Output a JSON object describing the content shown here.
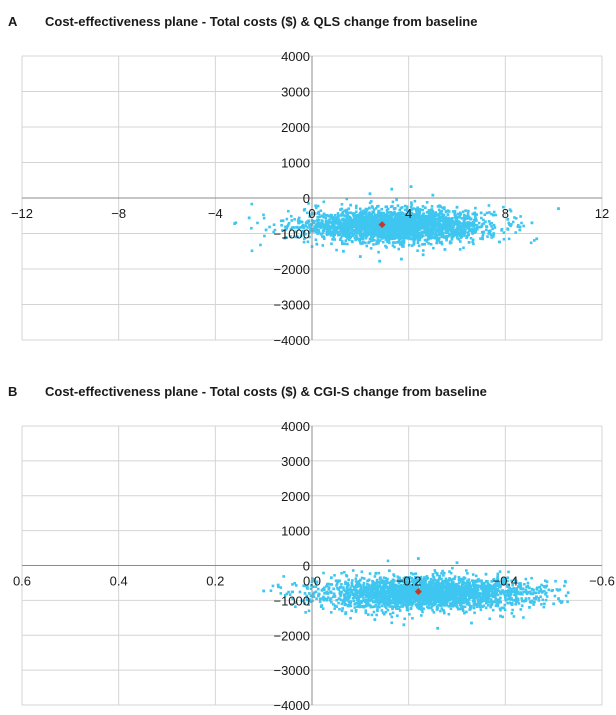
{
  "colors": {
    "points": "#3ec6f0",
    "mean": "#c0392b",
    "grid": "#d4d4d4",
    "axis": "#8c8c8c"
  },
  "panels": [
    {
      "letter": "A",
      "title": "Cost-effectiveness plane - Total costs ($) & QLS change from baseline"
    },
    {
      "letter": "B",
      "title": "Cost-effectiveness plane - Total costs ($) & CGI-S change from baseline"
    }
  ],
  "chart_data": [
    {
      "type": "scatter",
      "title": "Cost-effectiveness plane - Total costs ($) & QLS change from baseline",
      "xlabel": "",
      "ylabel": "",
      "xlim": [
        -12,
        12
      ],
      "ylim": [
        -4000,
        4000
      ],
      "reversed_x": false,
      "x_ticks": [
        -12,
        -8,
        -4,
        0,
        4,
        8,
        12
      ],
      "x_tick_labels": [
        "−12",
        "−8",
        "−4",
        "0",
        "4",
        "8",
        "12"
      ],
      "y_ticks": [
        4000,
        3000,
        2000,
        1000,
        0,
        -1000,
        -2000,
        -3000,
        -4000
      ],
      "y_tick_labels": [
        "4000",
        "3000",
        "2000",
        "1000",
        "0",
        "−1000",
        "−2000",
        "−3000",
        "−4000"
      ],
      "grid": true,
      "mean_point": {
        "x": 2.9,
        "y": -750
      },
      "cloud": {
        "center_x": 3.5,
        "center_y": -780,
        "spread_x": 1.9,
        "spread_y": 230,
        "x_range": [
          -3.4,
          9.4
        ],
        "y_range": [
          -1850,
          320
        ]
      },
      "points": [
        {
          "x": -3.2,
          "y": -720
        },
        {
          "x": -2.6,
          "y": -560
        },
        {
          "x": -1.9,
          "y": -900
        },
        {
          "x": -1.2,
          "y": -640
        },
        {
          "x": -0.6,
          "y": -1100
        },
        {
          "x": -0.3,
          "y": -320
        },
        {
          "x": 0.2,
          "y": -1300
        },
        {
          "x": 0.5,
          "y": -450
        },
        {
          "x": 0.9,
          "y": -980
        },
        {
          "x": 1.3,
          "y": -1500
        },
        {
          "x": 1.6,
          "y": -200
        },
        {
          "x": 2.0,
          "y": -1650
        },
        {
          "x": 2.4,
          "y": 120
        },
        {
          "x": 2.8,
          "y": -1780
        },
        {
          "x": 3.3,
          "y": 250
        },
        {
          "x": 3.7,
          "y": -1720
        },
        {
          "x": 4.1,
          "y": 320
        },
        {
          "x": 4.6,
          "y": -1600
        },
        {
          "x": 5.0,
          "y": 80
        },
        {
          "x": 5.5,
          "y": -1450
        },
        {
          "x": 6.0,
          "y": -260
        },
        {
          "x": 6.5,
          "y": -1250
        },
        {
          "x": 7.0,
          "y": -420
        },
        {
          "x": 7.5,
          "y": -1080
        },
        {
          "x": 8.1,
          "y": -600
        },
        {
          "x": 8.6,
          "y": -900
        },
        {
          "x": 9.1,
          "y": -700
        },
        {
          "x": 9.3,
          "y": -1150
        },
        {
          "x": 10.2,
          "y": -300
        }
      ]
    },
    {
      "type": "scatter",
      "title": "Cost-effectiveness plane - Total costs ($) & CGI-S change from baseline",
      "xlabel": "",
      "ylabel": "",
      "xlim": [
        0.6,
        -0.6
      ],
      "ylim": [
        -4000,
        4000
      ],
      "reversed_x": true,
      "x_ticks": [
        0.6,
        0.4,
        0.2,
        0.0,
        -0.2,
        -0.4,
        -0.6
      ],
      "x_tick_labels": [
        "0.6",
        "0.4",
        "0.2",
        "0.0",
        "−0.2",
        "−0.4",
        "−0.6"
      ],
      "y_ticks": [
        4000,
        3000,
        2000,
        1000,
        0,
        -1000,
        -2000,
        -3000,
        -4000
      ],
      "y_tick_labels": [
        "4000",
        "3000",
        "2000",
        "1000",
        "0",
        "−1000",
        "−2000",
        "−3000",
        "−4000"
      ],
      "grid": true,
      "mean_point": {
        "x": -0.22,
        "y": -750
      },
      "cloud": {
        "center_x": -0.24,
        "center_y": -800,
        "spread_x": 0.11,
        "spread_y": 230,
        "x_range": [
          0.1,
          -0.53
        ],
        "y_range": [
          -1900,
          250
        ]
      },
      "points": [
        {
          "x": 0.1,
          "y": -730
        },
        {
          "x": 0.07,
          "y": -560
        },
        {
          "x": 0.04,
          "y": -950
        },
        {
          "x": 0.01,
          "y": -640
        },
        {
          "x": -0.02,
          "y": -1150
        },
        {
          "x": -0.04,
          "y": -350
        },
        {
          "x": -0.07,
          "y": -1350
        },
        {
          "x": -0.1,
          "y": -420
        },
        {
          "x": -0.13,
          "y": -1550
        },
        {
          "x": -0.16,
          "y": -150
        },
        {
          "x": -0.19,
          "y": -1700
        },
        {
          "x": -0.22,
          "y": 200
        },
        {
          "x": -0.26,
          "y": -1800
        },
        {
          "x": -0.3,
          "y": 80
        },
        {
          "x": -0.33,
          "y": -1650
        },
        {
          "x": -0.36,
          "y": -250
        },
        {
          "x": -0.39,
          "y": -1450
        },
        {
          "x": -0.42,
          "y": -400
        },
        {
          "x": -0.45,
          "y": -1200
        },
        {
          "x": -0.48,
          "y": -600
        },
        {
          "x": -0.51,
          "y": -950
        },
        {
          "x": -0.53,
          "y": -780
        },
        {
          "x": -0.46,
          "y": -1050
        },
        {
          "x": -0.5,
          "y": -1100
        }
      ]
    }
  ]
}
